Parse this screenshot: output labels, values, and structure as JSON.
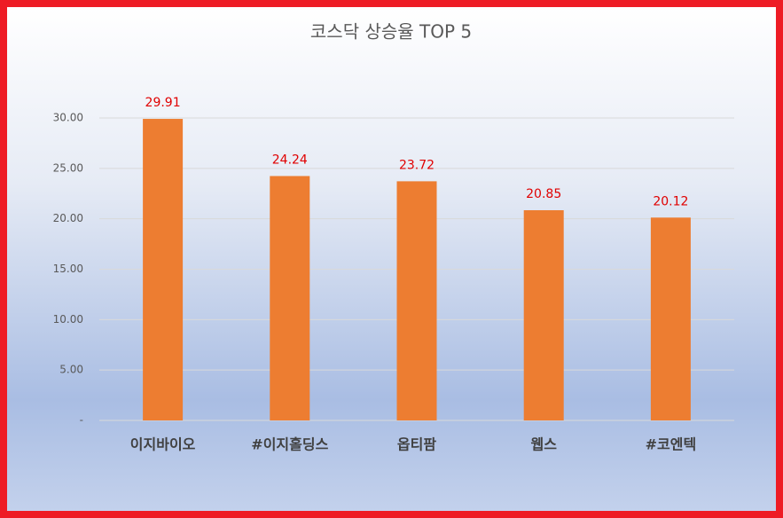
{
  "chart_data": {
    "type": "bar",
    "title": "코스닥 상승율 TOP 5",
    "categories": [
      "이지바이오",
      "#이지홀딩스",
      "옵티팜",
      "웹스",
      "#코엔텍"
    ],
    "values": [
      29.91,
      24.24,
      23.72,
      20.85,
      20.12
    ],
    "color": "#ed7d31",
    "label_color": "#e00000",
    "ylim": [
      0,
      30
    ],
    "yticks": [
      {
        "value": 0,
        "label": "-"
      },
      {
        "value": 5,
        "label": "5.00"
      },
      {
        "value": 10,
        "label": "10.00"
      },
      {
        "value": 15,
        "label": "15.00"
      },
      {
        "value": 20,
        "label": "20.00"
      },
      {
        "value": 25,
        "label": "25.00"
      },
      {
        "value": 30,
        "label": "30.00"
      }
    ],
    "grid": true
  }
}
